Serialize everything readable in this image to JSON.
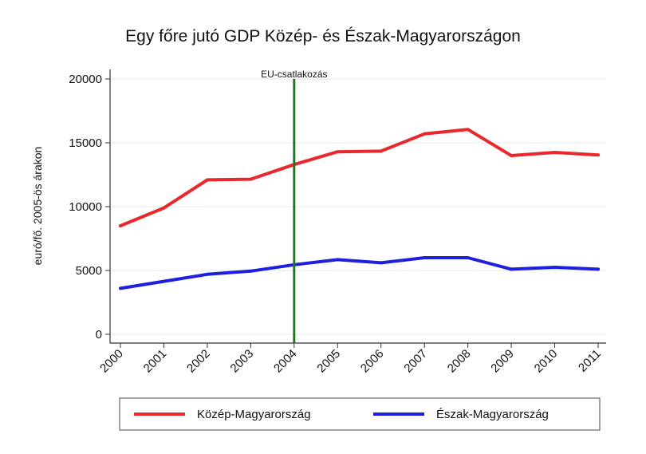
{
  "chart_data": {
    "type": "line",
    "title": "Egy főre jutó GDP Közép- és Észak-Magyarországon",
    "ylabel": "euró/fő. 2005-ös árakon",
    "xlabel": "",
    "categories": [
      "2000",
      "2001",
      "2002",
      "2003",
      "2004",
      "2005",
      "2006",
      "2007",
      "2008",
      "2009",
      "2010",
      "2011"
    ],
    "yticks": [
      0,
      5000,
      10000,
      15000,
      20000
    ],
    "ytick_labels": [
      "0",
      "5000",
      "10000",
      "15000",
      "20000"
    ],
    "ylim": [
      0,
      20000
    ],
    "grid": true,
    "series": [
      {
        "name": "Közép-Magyarország",
        "color": "#e8282b",
        "values": [
          8500,
          9900,
          12100,
          12150,
          13300,
          14300,
          14350,
          15700,
          16050,
          14000,
          14250,
          14050
        ]
      },
      {
        "name": "Észak-Magyarország",
        "color": "#1f1fe0",
        "values": [
          3600,
          4150,
          4700,
          4950,
          5450,
          5850,
          5600,
          6000,
          6000,
          5100,
          5250,
          5100
        ]
      }
    ],
    "annotation": {
      "label": "EU-csatlakozás",
      "x": "2004",
      "color": "#1e7a1e"
    },
    "legend": {
      "position": "bottom"
    }
  }
}
